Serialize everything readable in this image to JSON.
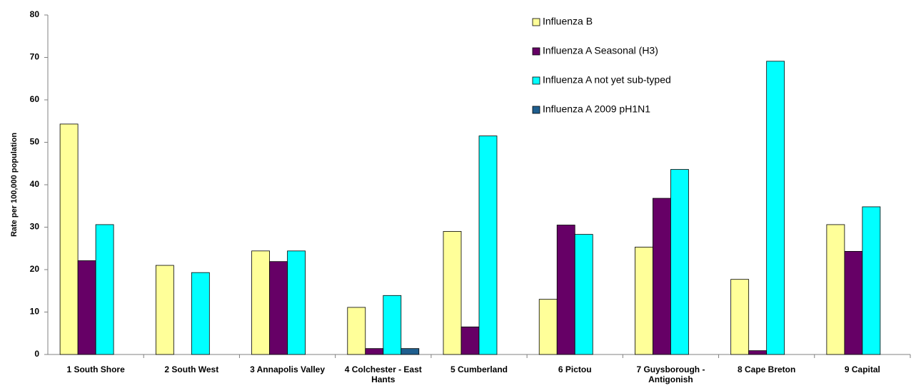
{
  "chart_data": {
    "type": "bar",
    "y_label": "Rate per 100,000 population",
    "categories": [
      "1 South Shore",
      "2 South West",
      "3 Annapolis Valley",
      "4 Colchester - East Hants",
      "5 Cumberland",
      "6 Pictou",
      "7 Guysborough - Antigonish",
      "8 Cape Breton",
      "9 Capital"
    ],
    "series": [
      {
        "name": "Influenza B",
        "color": "#ffff99",
        "values": [
          54.3,
          21.0,
          24.4,
          11.1,
          29.0,
          13.0,
          25.3,
          17.7,
          30.6
        ]
      },
      {
        "name": "Influenza A Seasonal (H3)",
        "color": "#660066",
        "values": [
          22.1,
          0,
          21.9,
          1.4,
          6.5,
          30.5,
          36.8,
          0.9,
          24.3
        ]
      },
      {
        "name": "Influenza A not yet sub-typed",
        "color": "#00ffff",
        "values": [
          30.6,
          19.3,
          24.4,
          13.9,
          51.5,
          28.3,
          43.6,
          69.1,
          34.8
        ]
      },
      {
        "name": "Influenza A 2009 pH1N1",
        "color": "#1f5e8e",
        "values": [
          0,
          0,
          0,
          1.4,
          0,
          0,
          0,
          0,
          0
        ]
      }
    ],
    "ylim": [
      0,
      80
    ],
    "yticks": [
      0,
      10,
      20,
      30,
      40,
      50,
      60,
      70,
      80
    ],
    "grid": false
  }
}
